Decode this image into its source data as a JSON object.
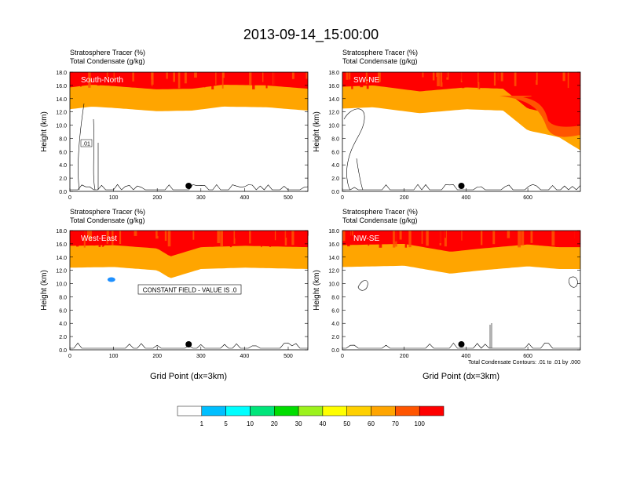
{
  "figure": {
    "title": "2013-09-14_15:00:00",
    "contour_note": "Total Condensate Contours: .01 to .01 by .000",
    "colors": {
      "bands": [
        "#ffffff",
        "#1e90ff",
        "#00bfff",
        "#00ffff",
        "#00e57a",
        "#00dd00",
        "#9cf21c",
        "#ffff00",
        "#ffd000",
        "#ffa500",
        "#ff5500",
        "#ff0000"
      ],
      "accent_red": "#ff0000",
      "contour": "#000000"
    }
  },
  "colorbar": {
    "labels": [
      "1",
      "5",
      "10",
      "20",
      "30",
      "40",
      "50",
      "60",
      "70",
      "100"
    ]
  },
  "chart_data": [
    {
      "type": "heatmap",
      "panel": "South-North",
      "subtitle_1": "Stratosphere Tracer   (%)",
      "subtitle_2": "Total Condensate   (g/kg)",
      "xlabel": "",
      "ylabel": "Height (km)",
      "xlim": [
        0,
        545
      ],
      "ylim": [
        0,
        18
      ],
      "xticks": [
        "0",
        "100",
        "200",
        "300",
        "400",
        "500"
      ],
      "yticks": [
        "0.0",
        "2.0",
        "4.0",
        "6.0",
        "8.0",
        "10.0",
        "12.0",
        "14.0",
        "16.0",
        "18.0"
      ],
      "tropopause_km": {
        "x": [
          0,
          50,
          100,
          200,
          280,
          350,
          450,
          545
        ],
        "z": [
          14.2,
          14.6,
          14.4,
          13.9,
          14.0,
          14.6,
          14.5,
          14.0
        ]
      },
      "contour_label": ".01",
      "marker_x": 272
    },
    {
      "type": "heatmap",
      "panel": "SW-NE",
      "subtitle_1": "Stratosphere Tracer   (%)",
      "subtitle_2": "Total Condensate   (g/kg)",
      "xlabel": "",
      "ylabel": "Height (km)",
      "xlim": [
        0,
        770
      ],
      "ylim": [
        0,
        18
      ],
      "xticks": [
        "0",
        "200",
        "400",
        "600"
      ],
      "yticks": [
        "0.0",
        "2.0",
        "4.0",
        "6.0",
        "8.0",
        "10.0",
        "12.0",
        "14.0",
        "16.0",
        "18.0"
      ],
      "tropopause_km": {
        "x": [
          0,
          100,
          250,
          400,
          520,
          600,
          700,
          770
        ],
        "z": [
          14.3,
          14.5,
          13.6,
          14.2,
          14.0,
          11.0,
          10.0,
          8.0
        ]
      },
      "marker_x": 385
    },
    {
      "type": "heatmap",
      "panel": "West-East",
      "subtitle_1": "Stratosphere Tracer   (%)",
      "subtitle_2": "Total Condensate   (g/kg)",
      "xlabel": "Grid Point (dx=3km)",
      "ylabel": "Height (km)",
      "xlim": [
        0,
        545
      ],
      "ylim": [
        0,
        18
      ],
      "xticks": [
        "0",
        "100",
        "200",
        "300",
        "400",
        "500"
      ],
      "yticks": [
        "0.0",
        "2.0",
        "4.0",
        "6.0",
        "8.0",
        "10.0",
        "12.0",
        "14.0",
        "16.0",
        "18.0"
      ],
      "tropopause_km": {
        "x": [
          0,
          100,
          200,
          230,
          300,
          400,
          545
        ],
        "z": [
          14.2,
          14.3,
          13.8,
          12.6,
          14.0,
          14.2,
          14.0
        ]
      },
      "annotation": "CONSTANT FIELD - VALUE IS .0",
      "marker_x": 272
    },
    {
      "type": "heatmap",
      "panel": "NW-SE",
      "subtitle_1": "Stratosphere Tracer   (%)",
      "subtitle_2": "Total Condensate   (g/kg)",
      "xlabel": "Grid Point (dx=3km)",
      "ylabel": "Height (km)",
      "xlim": [
        0,
        770
      ],
      "ylim": [
        0,
        18
      ],
      "xticks": [
        "0",
        "200",
        "400",
        "600"
      ],
      "yticks": [
        "0.0",
        "2.0",
        "4.0",
        "6.0",
        "8.0",
        "10.0",
        "12.0",
        "14.0",
        "16.0",
        "18.0"
      ],
      "tropopause_km": {
        "x": [
          0,
          200,
          350,
          450,
          600,
          700,
          770
        ],
        "z": [
          14.3,
          14.5,
          13.3,
          13.8,
          14.4,
          14.0,
          14.0
        ]
      },
      "marker_x": 385
    }
  ]
}
